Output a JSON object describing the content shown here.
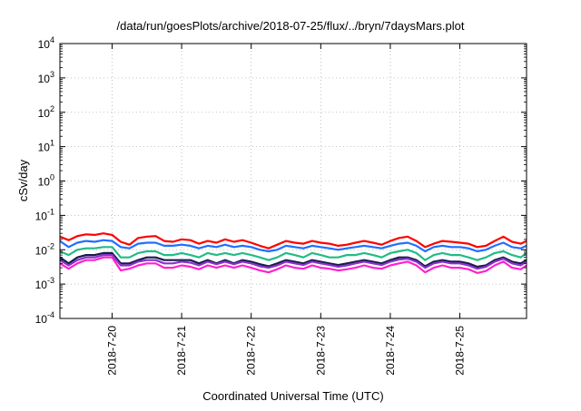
{
  "chart_data": {
    "type": "line",
    "title": "/data/run/goesPlots/archive/2018-07-25/flux/../bryn/7daysMars.plot",
    "xlabel": "Coordinated Universal Time (UTC)",
    "ylabel": "cSv/day",
    "yscale": "log",
    "ylim": [
      0.0001,
      10000
    ],
    "y_ticks": [
      {
        "value": 0.0001,
        "base": "10",
        "exp": "-4"
      },
      {
        "value": 0.001,
        "base": "10",
        "exp": "-3"
      },
      {
        "value": 0.01,
        "base": "10",
        "exp": "-2"
      },
      {
        "value": 0.1,
        "base": "10",
        "exp": "-1"
      },
      {
        "value": 1,
        "base": "10",
        "exp": "0"
      },
      {
        "value": 10,
        "base": "10",
        "exp": "1"
      },
      {
        "value": 100,
        "base": "10",
        "exp": "2"
      },
      {
        "value": 1000,
        "base": "10",
        "exp": "3"
      },
      {
        "value": 10000,
        "base": "10",
        "exp": "4"
      }
    ],
    "xlim": [
      "2018-07-19T06:00",
      "2018-07-25T23:00"
    ],
    "x_ticks": [
      {
        "value": "2018-07-20T00:00",
        "label": "2018-7-20"
      },
      {
        "value": "2018-07-21T00:00",
        "label": "2018-7-21"
      },
      {
        "value": "2018-07-22T00:00",
        "label": "2018-7-22"
      },
      {
        "value": "2018-07-23T00:00",
        "label": "2018-7-23"
      },
      {
        "value": "2018-07-24T00:00",
        "label": "2018-7-24"
      },
      {
        "value": "2018-07-25T00:00",
        "label": "2018-7-25"
      }
    ],
    "grid": true,
    "x": [
      "2018-07-19T06:00",
      "2018-07-19T09:00",
      "2018-07-19T12:00",
      "2018-07-19T15:00",
      "2018-07-19T18:00",
      "2018-07-19T21:00",
      "2018-07-20T00:00",
      "2018-07-20T03:00",
      "2018-07-20T06:00",
      "2018-07-20T09:00",
      "2018-07-20T12:00",
      "2018-07-20T15:00",
      "2018-07-20T18:00",
      "2018-07-20T21:00",
      "2018-07-21T00:00",
      "2018-07-21T03:00",
      "2018-07-21T06:00",
      "2018-07-21T09:00",
      "2018-07-21T12:00",
      "2018-07-21T15:00",
      "2018-07-21T18:00",
      "2018-07-21T21:00",
      "2018-07-22T00:00",
      "2018-07-22T03:00",
      "2018-07-22T06:00",
      "2018-07-22T09:00",
      "2018-07-22T12:00",
      "2018-07-22T15:00",
      "2018-07-22T18:00",
      "2018-07-22T21:00",
      "2018-07-23T00:00",
      "2018-07-23T03:00",
      "2018-07-23T06:00",
      "2018-07-23T09:00",
      "2018-07-23T12:00",
      "2018-07-23T15:00",
      "2018-07-23T18:00",
      "2018-07-23T21:00",
      "2018-07-24T00:00",
      "2018-07-24T03:00",
      "2018-07-24T06:00",
      "2018-07-24T09:00",
      "2018-07-24T12:00",
      "2018-07-24T15:00",
      "2018-07-24T18:00",
      "2018-07-24T21:00",
      "2018-07-25T00:00",
      "2018-07-25T03:00",
      "2018-07-25T06:00",
      "2018-07-25T09:00",
      "2018-07-25T12:00",
      "2018-07-25T15:00",
      "2018-07-25T18:00",
      "2018-07-25T21:00",
      "2018-07-25T23:00"
    ],
    "series": [
      {
        "color": "#ff0000",
        "values": [
          0.024,
          0.019,
          0.025,
          0.028,
          0.027,
          0.03,
          0.027,
          0.017,
          0.014,
          0.022,
          0.024,
          0.025,
          0.018,
          0.017,
          0.02,
          0.019,
          0.015,
          0.018,
          0.016,
          0.02,
          0.017,
          0.019,
          0.016,
          0.013,
          0.011,
          0.014,
          0.018,
          0.016,
          0.015,
          0.018,
          0.016,
          0.015,
          0.013,
          0.014,
          0.016,
          0.018,
          0.016,
          0.014,
          0.018,
          0.022,
          0.024,
          0.018,
          0.012,
          0.015,
          0.018,
          0.017,
          0.016,
          0.015,
          0.012,
          0.013,
          0.018,
          0.024,
          0.017,
          0.015,
          0.018
        ]
      },
      {
        "color": "#1f6fff",
        "values": [
          0.018,
          0.012,
          0.016,
          0.018,
          0.017,
          0.019,
          0.018,
          0.012,
          0.011,
          0.015,
          0.016,
          0.016,
          0.013,
          0.013,
          0.014,
          0.013,
          0.011,
          0.013,
          0.012,
          0.014,
          0.012,
          0.013,
          0.012,
          0.01,
          0.009,
          0.01,
          0.013,
          0.012,
          0.011,
          0.013,
          0.012,
          0.011,
          0.01,
          0.011,
          0.012,
          0.013,
          0.012,
          0.011,
          0.013,
          0.015,
          0.016,
          0.013,
          0.009,
          0.012,
          0.013,
          0.012,
          0.012,
          0.011,
          0.009,
          0.01,
          0.013,
          0.016,
          0.012,
          0.011,
          0.013
        ]
      },
      {
        "color": "#22bb88",
        "values": [
          0.009,
          0.007,
          0.01,
          0.011,
          0.011,
          0.012,
          0.012,
          0.006,
          0.006,
          0.008,
          0.009,
          0.009,
          0.007,
          0.007,
          0.008,
          0.007,
          0.006,
          0.008,
          0.007,
          0.008,
          0.007,
          0.008,
          0.007,
          0.006,
          0.005,
          0.006,
          0.008,
          0.007,
          0.006,
          0.008,
          0.007,
          0.006,
          0.006,
          0.007,
          0.007,
          0.008,
          0.007,
          0.006,
          0.008,
          0.009,
          0.01,
          0.008,
          0.005,
          0.007,
          0.008,
          0.007,
          0.007,
          0.006,
          0.005,
          0.006,
          0.008,
          0.009,
          0.007,
          0.006,
          0.008
        ]
      },
      {
        "color": "#1a1a4a",
        "values": [
          0.006,
          0.004,
          0.006,
          0.007,
          0.007,
          0.008,
          0.008,
          0.004,
          0.004,
          0.005,
          0.006,
          0.006,
          0.005,
          0.005,
          0.005,
          0.005,
          0.004,
          0.005,
          0.004,
          0.005,
          0.004,
          0.005,
          0.0045,
          0.0038,
          0.0033,
          0.004,
          0.005,
          0.0045,
          0.004,
          0.005,
          0.0045,
          0.004,
          0.0036,
          0.004,
          0.0045,
          0.005,
          0.0045,
          0.004,
          0.005,
          0.006,
          0.006,
          0.005,
          0.0033,
          0.0045,
          0.005,
          0.0045,
          0.0045,
          0.004,
          0.0032,
          0.0035,
          0.005,
          0.006,
          0.0045,
          0.004,
          0.005
        ]
      },
      {
        "color": "#8833cc",
        "values": [
          0.005,
          0.0035,
          0.005,
          0.006,
          0.006,
          0.007,
          0.007,
          0.0035,
          0.0035,
          0.0045,
          0.005,
          0.005,
          0.004,
          0.004,
          0.0045,
          0.0042,
          0.0035,
          0.0045,
          0.0038,
          0.0045,
          0.0038,
          0.0045,
          0.004,
          0.0033,
          0.003,
          0.0035,
          0.0045,
          0.004,
          0.0036,
          0.0045,
          0.004,
          0.0036,
          0.0032,
          0.0035,
          0.004,
          0.0045,
          0.004,
          0.0036,
          0.0045,
          0.0052,
          0.0055,
          0.0045,
          0.003,
          0.004,
          0.0045,
          0.004,
          0.004,
          0.0035,
          0.0028,
          0.0032,
          0.0045,
          0.0055,
          0.004,
          0.0035,
          0.0045
        ]
      },
      {
        "color": "#ff22cc",
        "values": [
          0.004,
          0.0028,
          0.004,
          0.005,
          0.005,
          0.006,
          0.006,
          0.0025,
          0.0028,
          0.0035,
          0.004,
          0.004,
          0.003,
          0.003,
          0.0035,
          0.0032,
          0.0027,
          0.0035,
          0.003,
          0.0035,
          0.003,
          0.0035,
          0.003,
          0.0025,
          0.0022,
          0.0027,
          0.0035,
          0.003,
          0.0028,
          0.0035,
          0.003,
          0.0028,
          0.0025,
          0.0027,
          0.003,
          0.0035,
          0.003,
          0.0028,
          0.0035,
          0.004,
          0.0045,
          0.0035,
          0.0022,
          0.003,
          0.0035,
          0.003,
          0.003,
          0.0027,
          0.0021,
          0.0024,
          0.0035,
          0.0045,
          0.003,
          0.0027,
          0.0035
        ]
      }
    ]
  }
}
